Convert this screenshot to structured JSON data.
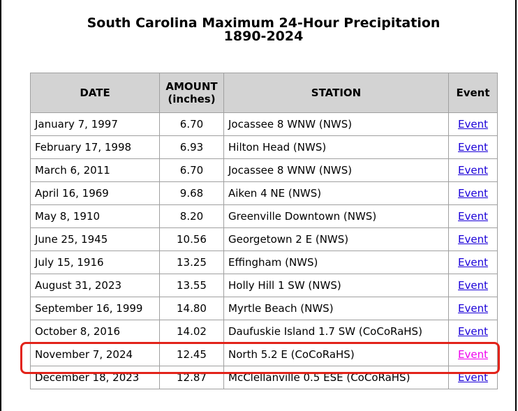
{
  "title": {
    "line1": "South Carolina Maximum 24-Hour Precipitation",
    "line2": "1890-2024"
  },
  "table": {
    "headers": {
      "date": "DATE",
      "amount_line1": "AMOUNT",
      "amount_line2": "(inches)",
      "station": "STATION",
      "event": "Event"
    },
    "rows": [
      {
        "date": "January 7, 1997",
        "amount": "6.70",
        "station": "Jocassee 8 WNW (NWS)",
        "event": "Event"
      },
      {
        "date": "February 17, 1998",
        "amount": "6.93",
        "station": "Hilton Head (NWS)",
        "event": "Event"
      },
      {
        "date": "March 6, 2011",
        "amount": "6.70",
        "station": "Jocassee 8 WNW (NWS)",
        "event": "Event"
      },
      {
        "date": "April 16, 1969",
        "amount": "9.68",
        "station": "Aiken 4 NE (NWS)",
        "event": "Event"
      },
      {
        "date": "May 8, 1910",
        "amount": "8.20",
        "station": "Greenville Downtown (NWS)",
        "event": "Event"
      },
      {
        "date": "June 25, 1945",
        "amount": "10.56",
        "station": "Georgetown 2 E (NWS)",
        "event": "Event"
      },
      {
        "date": "July 15, 1916",
        "amount": "13.25",
        "station": "Effingham (NWS)",
        "event": "Event"
      },
      {
        "date": "August 31, 2023",
        "amount": "13.55",
        "station": "Holly Hill 1 SW (NWS)",
        "event": "Event"
      },
      {
        "date": "September 16, 1999",
        "amount": "14.80",
        "station": "Myrtle Beach (NWS)",
        "event": "Event"
      },
      {
        "date": "October 8, 2016",
        "amount": "14.02",
        "station": "Daufuskie Island 1.7 SW (CoCoRaHS)",
        "event": "Event"
      },
      {
        "date": "November 7, 2024",
        "amount": "12.45",
        "station": "North 5.2 E (CoCoRaHS)",
        "event": "Event"
      },
      {
        "date": "December 18, 2023",
        "amount": "12.87",
        "station": "McClellanville 0.5 ESE (CoCoRaHS)",
        "event": "Event"
      }
    ]
  },
  "colors": {
    "link": "#1a00d8",
    "visited_link": "#ee00ee",
    "highlight_outline": "#e2231a",
    "header_background": "#d3d3d3"
  },
  "highlighted_row": "November 7, 2024"
}
